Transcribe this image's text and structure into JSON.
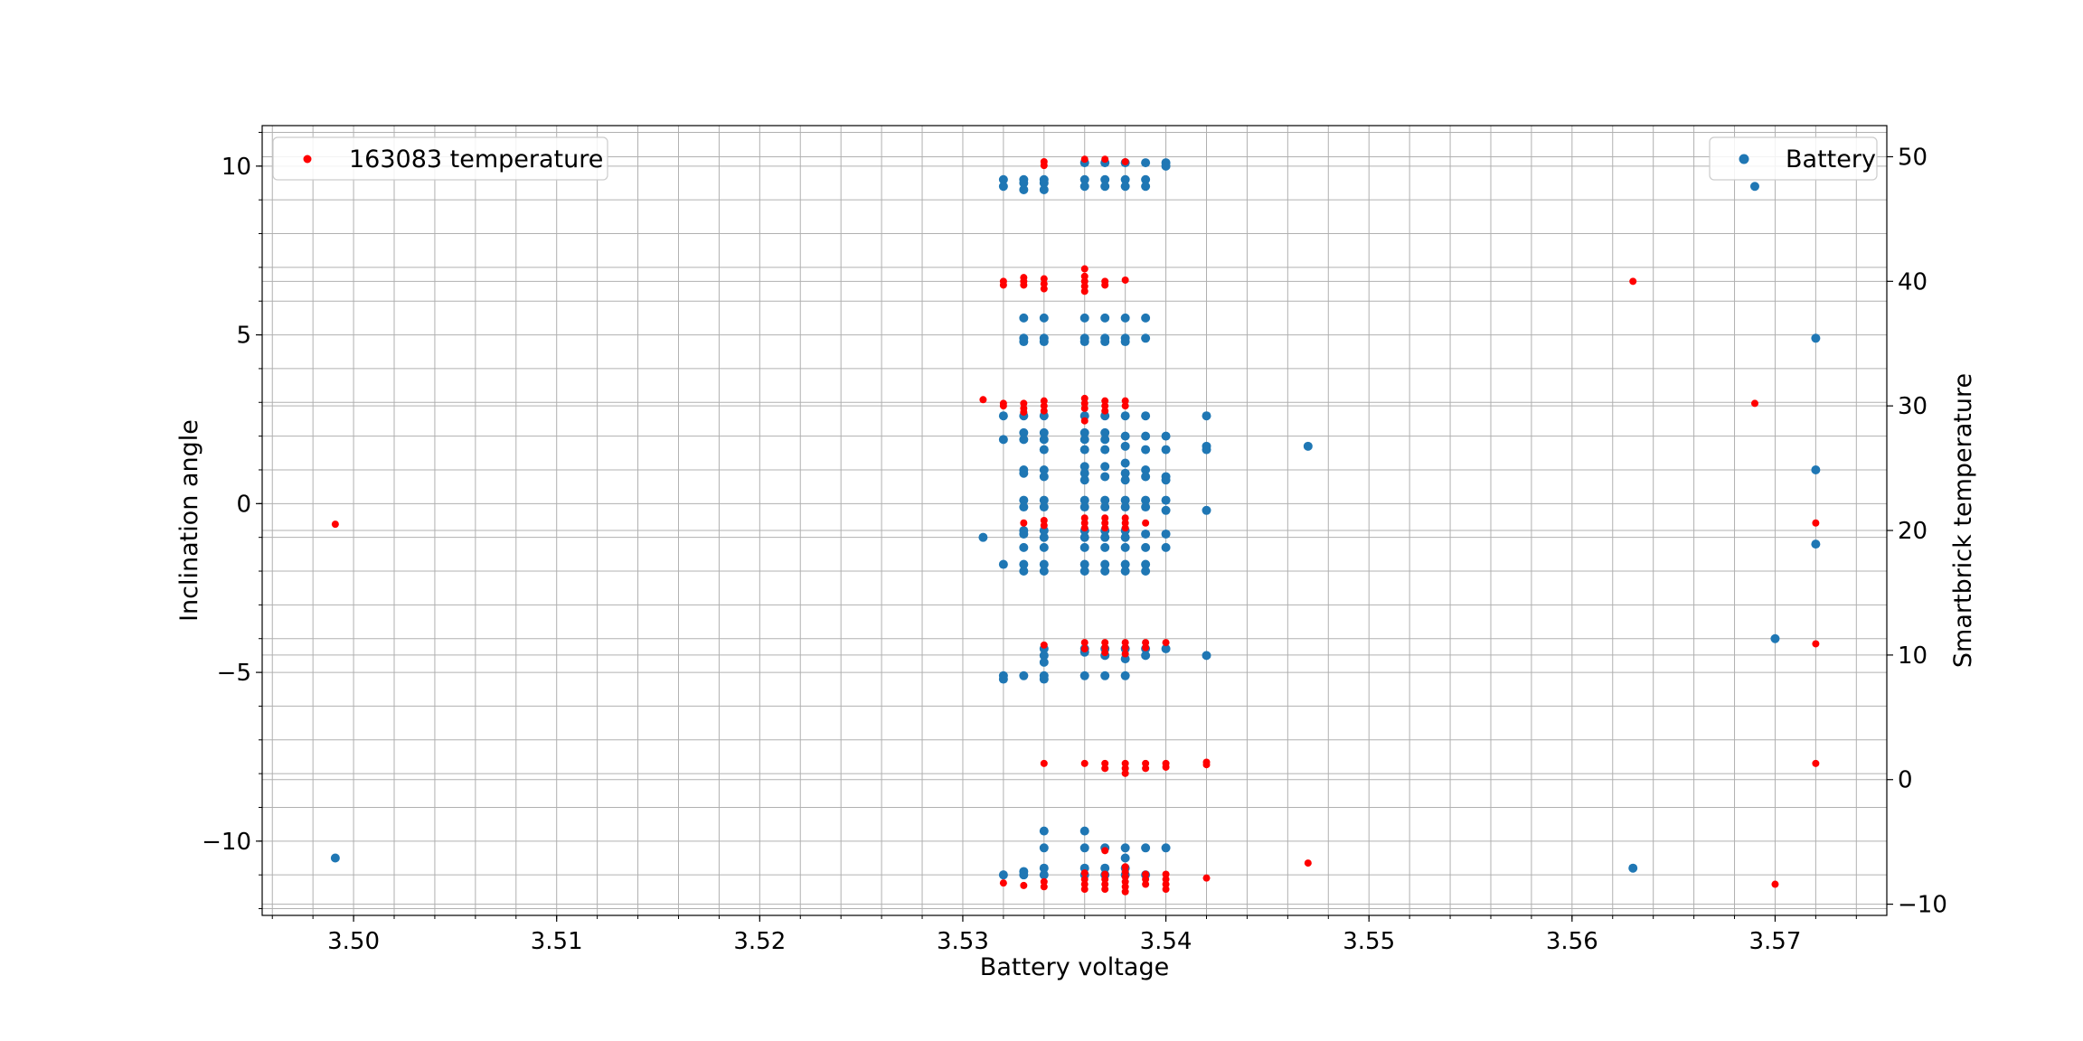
{
  "chart_data": {
    "type": "scatter",
    "title": "",
    "xlabel": "Battery voltage",
    "ylabel": "Inclination angle",
    "ylabel_right": "Smartbrick temperature",
    "xlim": [
      3.4955,
      3.5755
    ],
    "ylim": [
      -12.2,
      11.2
    ],
    "ylim_right": [
      -10.9,
      52.5
    ],
    "x_ticks": [
      3.5,
      3.51,
      3.52,
      3.53,
      3.54,
      3.55,
      3.56,
      3.57
    ],
    "x_tick_labels": [
      "3.50",
      "3.51",
      "3.52",
      "3.53",
      "3.54",
      "3.55",
      "3.56",
      "3.57"
    ],
    "y_ticks": [
      -10,
      -5,
      0,
      5,
      10
    ],
    "y_tick_labels": [
      "−10",
      "−5",
      "0",
      "5",
      "10"
    ],
    "y_right_ticks": [
      -10,
      0,
      10,
      20,
      30,
      40,
      50
    ],
    "y_right_tick_labels": [
      "−10",
      "0",
      "10",
      "20",
      "30",
      "40",
      "50"
    ],
    "grid": true,
    "series": [
      {
        "name": "Battery",
        "axis": "left",
        "color": "#1f77b4",
        "legend_position": "upper right",
        "points": [
          [
            3.4991,
            -10.5
          ],
          [
            3.531,
            -1.0
          ],
          [
            3.532,
            9.6
          ],
          [
            3.532,
            9.4
          ],
          [
            3.532,
            2.6
          ],
          [
            3.532,
            1.9
          ],
          [
            3.532,
            -1.8
          ],
          [
            3.532,
            -5.1
          ],
          [
            3.532,
            -5.2
          ],
          [
            3.532,
            -11.0
          ],
          [
            3.533,
            9.6
          ],
          [
            3.533,
            9.5
          ],
          [
            3.533,
            9.3
          ],
          [
            3.533,
            5.5
          ],
          [
            3.533,
            4.9
          ],
          [
            3.533,
            4.8
          ],
          [
            3.533,
            2.6
          ],
          [
            3.533,
            2.1
          ],
          [
            3.533,
            1.9
          ],
          [
            3.533,
            1.0
          ],
          [
            3.533,
            0.9
          ],
          [
            3.533,
            0.1
          ],
          [
            3.533,
            -0.1
          ],
          [
            3.533,
            -0.8
          ],
          [
            3.533,
            -0.9
          ],
          [
            3.533,
            -1.3
          ],
          [
            3.533,
            -1.8
          ],
          [
            3.533,
            -2.0
          ],
          [
            3.533,
            -5.1
          ],
          [
            3.533,
            -10.9
          ],
          [
            3.533,
            -11.0
          ],
          [
            3.534,
            9.6
          ],
          [
            3.534,
            9.5
          ],
          [
            3.534,
            9.3
          ],
          [
            3.534,
            5.5
          ],
          [
            3.534,
            4.9
          ],
          [
            3.534,
            4.8
          ],
          [
            3.534,
            2.6
          ],
          [
            3.534,
            2.1
          ],
          [
            3.534,
            1.9
          ],
          [
            3.534,
            1.6
          ],
          [
            3.534,
            1.0
          ],
          [
            3.534,
            0.8
          ],
          [
            3.534,
            0.1
          ],
          [
            3.534,
            -0.1
          ],
          [
            3.534,
            -0.8
          ],
          [
            3.534,
            -1.0
          ],
          [
            3.534,
            -1.3
          ],
          [
            3.534,
            -1.8
          ],
          [
            3.534,
            -2.0
          ],
          [
            3.534,
            -4.3
          ],
          [
            3.534,
            -4.5
          ],
          [
            3.534,
            -4.7
          ],
          [
            3.534,
            -5.1
          ],
          [
            3.534,
            -5.2
          ],
          [
            3.534,
            -9.7
          ],
          [
            3.534,
            -10.2
          ],
          [
            3.534,
            -10.8
          ],
          [
            3.534,
            -11.0
          ],
          [
            3.536,
            10.1
          ],
          [
            3.536,
            9.6
          ],
          [
            3.536,
            9.4
          ],
          [
            3.536,
            5.5
          ],
          [
            3.536,
            4.9
          ],
          [
            3.536,
            4.8
          ],
          [
            3.536,
            2.6
          ],
          [
            3.536,
            2.1
          ],
          [
            3.536,
            1.9
          ],
          [
            3.536,
            1.6
          ],
          [
            3.536,
            1.1
          ],
          [
            3.536,
            0.9
          ],
          [
            3.536,
            0.7
          ],
          [
            3.536,
            0.1
          ],
          [
            3.536,
            -0.1
          ],
          [
            3.536,
            -0.8
          ],
          [
            3.536,
            -1.0
          ],
          [
            3.536,
            -1.3
          ],
          [
            3.536,
            -1.8
          ],
          [
            3.536,
            -2.0
          ],
          [
            3.536,
            -4.3
          ],
          [
            3.536,
            -4.4
          ],
          [
            3.536,
            -5.1
          ],
          [
            3.536,
            -9.7
          ],
          [
            3.536,
            -10.2
          ],
          [
            3.536,
            -10.8
          ],
          [
            3.536,
            -11.0
          ],
          [
            3.537,
            10.1
          ],
          [
            3.537,
            9.6
          ],
          [
            3.537,
            9.4
          ],
          [
            3.537,
            5.5
          ],
          [
            3.537,
            4.9
          ],
          [
            3.537,
            4.8
          ],
          [
            3.537,
            2.6
          ],
          [
            3.537,
            2.1
          ],
          [
            3.537,
            1.9
          ],
          [
            3.537,
            1.6
          ],
          [
            3.537,
            1.1
          ],
          [
            3.537,
            0.8
          ],
          [
            3.537,
            0.1
          ],
          [
            3.537,
            -0.1
          ],
          [
            3.537,
            -0.8
          ],
          [
            3.537,
            -1.0
          ],
          [
            3.537,
            -1.3
          ],
          [
            3.537,
            -1.8
          ],
          [
            3.537,
            -2.0
          ],
          [
            3.537,
            -4.3
          ],
          [
            3.537,
            -4.5
          ],
          [
            3.537,
            -5.1
          ],
          [
            3.537,
            -10.2
          ],
          [
            3.537,
            -10.8
          ],
          [
            3.537,
            -11.0
          ],
          [
            3.538,
            10.1
          ],
          [
            3.538,
            9.6
          ],
          [
            3.538,
            9.4
          ],
          [
            3.538,
            5.5
          ],
          [
            3.538,
            4.9
          ],
          [
            3.538,
            4.8
          ],
          [
            3.538,
            2.6
          ],
          [
            3.538,
            2.0
          ],
          [
            3.538,
            1.7
          ],
          [
            3.538,
            1.2
          ],
          [
            3.538,
            0.9
          ],
          [
            3.538,
            0.7
          ],
          [
            3.538,
            0.1
          ],
          [
            3.538,
            -0.1
          ],
          [
            3.538,
            -0.8
          ],
          [
            3.538,
            -1.0
          ],
          [
            3.538,
            -1.3
          ],
          [
            3.538,
            -1.8
          ],
          [
            3.538,
            -2.0
          ],
          [
            3.538,
            -4.3
          ],
          [
            3.538,
            -4.6
          ],
          [
            3.538,
            -5.1
          ],
          [
            3.538,
            -10.2
          ],
          [
            3.538,
            -10.5
          ],
          [
            3.538,
            -10.8
          ],
          [
            3.538,
            -11.0
          ],
          [
            3.539,
            10.1
          ],
          [
            3.539,
            9.6
          ],
          [
            3.539,
            9.4
          ],
          [
            3.539,
            5.5
          ],
          [
            3.539,
            4.9
          ],
          [
            3.539,
            2.6
          ],
          [
            3.539,
            2.0
          ],
          [
            3.539,
            1.6
          ],
          [
            3.539,
            1.0
          ],
          [
            3.539,
            0.8
          ],
          [
            3.539,
            0.1
          ],
          [
            3.539,
            -0.1
          ],
          [
            3.539,
            -0.9
          ],
          [
            3.539,
            -1.3
          ],
          [
            3.539,
            -1.8
          ],
          [
            3.539,
            -2.0
          ],
          [
            3.539,
            -4.3
          ],
          [
            3.539,
            -4.5
          ],
          [
            3.539,
            -10.2
          ],
          [
            3.539,
            -11.0
          ],
          [
            3.54,
            10.1
          ],
          [
            3.54,
            10.0
          ],
          [
            3.54,
            2.0
          ],
          [
            3.54,
            1.6
          ],
          [
            3.54,
            0.8
          ],
          [
            3.54,
            0.7
          ],
          [
            3.54,
            0.1
          ],
          [
            3.54,
            -0.2
          ],
          [
            3.54,
            -0.9
          ],
          [
            3.54,
            -1.3
          ],
          [
            3.54,
            -4.3
          ],
          [
            3.54,
            -10.2
          ],
          [
            3.542,
            2.6
          ],
          [
            3.542,
            1.7
          ],
          [
            3.542,
            1.6
          ],
          [
            3.542,
            -0.2
          ],
          [
            3.542,
            -4.5
          ],
          [
            3.547,
            1.7
          ],
          [
            3.563,
            -10.8
          ],
          [
            3.569,
            9.4
          ],
          [
            3.57,
            -4.0
          ],
          [
            3.572,
            4.9
          ],
          [
            3.572,
            1.0
          ],
          [
            3.572,
            -1.2
          ]
        ]
      },
      {
        "name": "163083 temperature",
        "axis": "right",
        "color": "#ff0000",
        "legend_position": "upper left",
        "points": [
          [
            3.4991,
            20.5
          ],
          [
            3.531,
            30.5
          ],
          [
            3.532,
            40.0
          ],
          [
            3.532,
            39.7
          ],
          [
            3.532,
            30.2
          ],
          [
            3.532,
            30.0
          ],
          [
            3.532,
            -8.3
          ],
          [
            3.533,
            40.3
          ],
          [
            3.533,
            40.0
          ],
          [
            3.533,
            39.7
          ],
          [
            3.533,
            30.2
          ],
          [
            3.533,
            29.8
          ],
          [
            3.533,
            29.5
          ],
          [
            3.533,
            20.6
          ],
          [
            3.533,
            -8.5
          ],
          [
            3.534,
            49.6
          ],
          [
            3.534,
            49.3
          ],
          [
            3.534,
            40.2
          ],
          [
            3.534,
            39.8
          ],
          [
            3.534,
            39.4
          ],
          [
            3.534,
            30.4
          ],
          [
            3.534,
            30.0
          ],
          [
            3.534,
            29.6
          ],
          [
            3.534,
            20.8
          ],
          [
            3.534,
            20.4
          ],
          [
            3.534,
            10.8
          ],
          [
            3.534,
            1.3
          ],
          [
            3.534,
            -8.2
          ],
          [
            3.534,
            -8.6
          ],
          [
            3.536,
            49.8
          ],
          [
            3.536,
            41.0
          ],
          [
            3.536,
            40.4
          ],
          [
            3.536,
            40.0
          ],
          [
            3.536,
            39.6
          ],
          [
            3.536,
            39.2
          ],
          [
            3.536,
            30.6
          ],
          [
            3.536,
            30.2
          ],
          [
            3.536,
            29.8
          ],
          [
            3.536,
            28.8
          ],
          [
            3.536,
            21.0
          ],
          [
            3.536,
            20.6
          ],
          [
            3.536,
            20.2
          ],
          [
            3.536,
            11.0
          ],
          [
            3.536,
            10.5
          ],
          [
            3.536,
            1.3
          ],
          [
            3.536,
            -7.5
          ],
          [
            3.536,
            -8.0
          ],
          [
            3.536,
            -8.4
          ],
          [
            3.536,
            -8.8
          ],
          [
            3.537,
            49.8
          ],
          [
            3.537,
            40.0
          ],
          [
            3.537,
            39.7
          ],
          [
            3.537,
            30.4
          ],
          [
            3.537,
            30.0
          ],
          [
            3.537,
            29.6
          ],
          [
            3.537,
            21.0
          ],
          [
            3.537,
            20.6
          ],
          [
            3.537,
            20.2
          ],
          [
            3.537,
            11.0
          ],
          [
            3.537,
            10.6
          ],
          [
            3.537,
            10.2
          ],
          [
            3.537,
            1.3
          ],
          [
            3.537,
            0.9
          ],
          [
            3.537,
            -5.7
          ],
          [
            3.537,
            -7.6
          ],
          [
            3.537,
            -8.0
          ],
          [
            3.537,
            -8.4
          ],
          [
            3.537,
            -8.8
          ],
          [
            3.538,
            49.6
          ],
          [
            3.538,
            40.1
          ],
          [
            3.538,
            30.4
          ],
          [
            3.538,
            30.0
          ],
          [
            3.538,
            21.0
          ],
          [
            3.538,
            20.6
          ],
          [
            3.538,
            20.2
          ],
          [
            3.538,
            11.0
          ],
          [
            3.538,
            10.6
          ],
          [
            3.538,
            10.1
          ],
          [
            3.538,
            1.3
          ],
          [
            3.538,
            0.9
          ],
          [
            3.538,
            0.5
          ],
          [
            3.538,
            -7.0
          ],
          [
            3.538,
            -7.4
          ],
          [
            3.538,
            -7.8
          ],
          [
            3.538,
            -8.2
          ],
          [
            3.538,
            -8.6
          ],
          [
            3.538,
            -9.0
          ],
          [
            3.539,
            20.6
          ],
          [
            3.539,
            11.0
          ],
          [
            3.539,
            10.6
          ],
          [
            3.539,
            1.3
          ],
          [
            3.539,
            0.9
          ],
          [
            3.539,
            -7.6
          ],
          [
            3.539,
            -8.0
          ],
          [
            3.539,
            -8.4
          ],
          [
            3.54,
            11.0
          ],
          [
            3.54,
            1.3
          ],
          [
            3.54,
            1.0
          ],
          [
            3.54,
            -7.6
          ],
          [
            3.54,
            -8.0
          ],
          [
            3.54,
            -8.4
          ],
          [
            3.54,
            -8.8
          ],
          [
            3.542,
            1.4
          ],
          [
            3.542,
            1.2
          ],
          [
            3.542,
            -7.9
          ],
          [
            3.547,
            -6.7
          ],
          [
            3.563,
            40.0
          ],
          [
            3.569,
            30.2
          ],
          [
            3.57,
            -8.4
          ],
          [
            3.572,
            20.6
          ],
          [
            3.572,
            10.9
          ],
          [
            3.572,
            1.3
          ]
        ]
      }
    ]
  }
}
